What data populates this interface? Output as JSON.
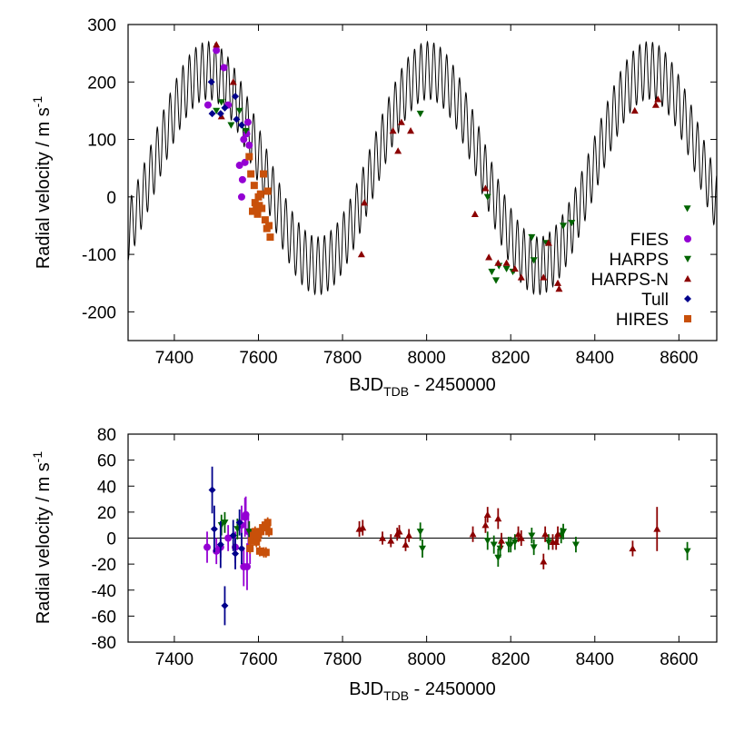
{
  "colors": {
    "FIES": "#9400d3",
    "HARPS": "#006400",
    "HARPS-N": "#8b0000",
    "Tull": "#00008b",
    "HIRES": "#c8500a",
    "model": "#000000"
  },
  "chart_data": [
    {
      "type": "line",
      "id": "top",
      "xlabel": {
        "main": "BJD",
        "sub": "TDB",
        "rest": " - 2450000"
      },
      "ylabel": {
        "main": "Radial velocity / m s",
        "sup": "-1"
      },
      "xlim": [
        7290,
        8690
      ],
      "ylim": [
        -250,
        300
      ],
      "xticks": [
        "7400",
        "7600",
        "7800",
        "8000",
        "8200",
        "8400",
        "8600"
      ],
      "yticks": [
        "-200",
        "-100",
        "0",
        "100",
        "200",
        "300"
      ],
      "legend_position": "right-lower",
      "legend": [
        "FIES",
        "HARPS",
        "HARPS-N",
        "Tull",
        "HIRES"
      ],
      "model": {
        "long_amplitude": 170,
        "long_period": 524,
        "long_peak": 7480,
        "offset": 50,
        "short_amplitude": 50,
        "short_period": 15.3
      },
      "series": [
        {
          "name": "FIES",
          "marker": "circle",
          "points": [
            [
              7480,
              160
            ],
            [
              7500,
              255
            ],
            [
              7518,
              225
            ],
            [
              7528,
              160
            ],
            [
              7555,
              55
            ],
            [
              7560,
              0
            ],
            [
              7562,
              30
            ],
            [
              7565,
              100
            ],
            [
              7568,
              60
            ],
            [
              7572,
              110
            ],
            [
              7575,
              130
            ],
            [
              7578,
              90
            ]
          ]
        },
        {
          "name": "HARPS",
          "marker": "triangle-down",
          "points": [
            [
              7500,
              150
            ],
            [
              7512,
              165
            ],
            [
              7535,
              125
            ],
            [
              7555,
              150
            ],
            [
              7570,
              115
            ],
            [
              7985,
              145
            ],
            [
              8145,
              0
            ],
            [
              8155,
              -130
            ],
            [
              8165,
              -145
            ],
            [
              8172,
              -120
            ],
            [
              8190,
              -125
            ],
            [
              8205,
              -130
            ],
            [
              8250,
              -70
            ],
            [
              8255,
              -110
            ],
            [
              8285,
              -80
            ],
            [
              8325,
              -50
            ],
            [
              8345,
              -45
            ],
            [
              8620,
              -20
            ]
          ]
        },
        {
          "name": "HARPS-N",
          "marker": "triangle-up",
          "points": [
            [
              7500,
              265
            ],
            [
              7512,
              140
            ],
            [
              7540,
              200
            ],
            [
              7845,
              -100
            ],
            [
              7852,
              -10
            ],
            [
              7920,
              115
            ],
            [
              7932,
              80
            ],
            [
              7940,
              130
            ],
            [
              7962,
              115
            ],
            [
              8115,
              -30
            ],
            [
              8140,
              15
            ],
            [
              8148,
              -105
            ],
            [
              8170,
              -115
            ],
            [
              8190,
              -115
            ],
            [
              8210,
              -125
            ],
            [
              8225,
              -140
            ],
            [
              8278,
              -140
            ],
            [
              8290,
              -80
            ],
            [
              8312,
              -150
            ],
            [
              8315,
              -160
            ],
            [
              8495,
              150
            ],
            [
              8545,
              160
            ],
            [
              8550,
              170
            ]
          ]
        },
        {
          "name": "Tull",
          "marker": "diamond",
          "points": [
            [
              7488,
              200
            ],
            [
              7490,
              145
            ],
            [
              7510,
              145
            ],
            [
              7520,
              155
            ],
            [
              7545,
              175
            ],
            [
              7548,
              135
            ],
            [
              7560,
              125
            ]
          ]
        },
        {
          "name": "HIRES",
          "marker": "square",
          "points": [
            [
              7578,
              70
            ],
            [
              7582,
              40
            ],
            [
              7586,
              -25
            ],
            [
              7590,
              20
            ],
            [
              7592,
              -10
            ],
            [
              7595,
              -20
            ],
            [
              7598,
              -30
            ],
            [
              7600,
              0
            ],
            [
              7602,
              -15
            ],
            [
              7605,
              5
            ],
            [
              7608,
              -20
            ],
            [
              7612,
              40
            ],
            [
              7616,
              -40
            ],
            [
              7620,
              -55
            ],
            [
              7622,
              10
            ],
            [
              7625,
              -50
            ],
            [
              7628,
              -70
            ]
          ]
        }
      ]
    },
    {
      "type": "scatter",
      "id": "bottom",
      "xlabel": {
        "main": "BJD",
        "sub": "TDB",
        "rest": " - 2450000"
      },
      "ylabel": {
        "main": "Radial velocity / m s",
        "sup": "-1"
      },
      "xlim": [
        7290,
        8690
      ],
      "ylim": [
        -80,
        80
      ],
      "xticks": [
        "7400",
        "7600",
        "7800",
        "8000",
        "8200",
        "8400",
        "8600"
      ],
      "yticks": [
        "-80",
        "-60",
        "-40",
        "-20",
        "0",
        "20",
        "40",
        "60",
        "80"
      ],
      "zero_line": 0,
      "series": [
        {
          "name": "FIES",
          "marker": "circle",
          "points": [
            [
              7478,
              -7,
              12
            ],
            [
              7500,
              -10,
              10
            ],
            [
              7510,
              -7,
              8
            ],
            [
              7528,
              0,
              10
            ],
            [
              7545,
              -7,
              12
            ],
            [
              7560,
              10,
              15
            ],
            [
              7565,
              -22,
              15
            ],
            [
              7568,
              16,
              15
            ],
            [
              7570,
              18,
              14
            ],
            [
              7573,
              -22,
              18
            ],
            [
              7576,
              5,
              12
            ],
            [
              7580,
              -8,
              12
            ]
          ]
        },
        {
          "name": "HARPS",
          "marker": "triangle-down",
          "points": [
            [
              7512,
              10,
              8
            ],
            [
              7520,
              12,
              8
            ],
            [
              7550,
              7,
              8
            ],
            [
              7578,
              5,
              8
            ],
            [
              7985,
              5,
              7
            ],
            [
              7990,
              -8,
              7
            ],
            [
              8145,
              -2,
              7
            ],
            [
              8160,
              -5,
              7
            ],
            [
              8170,
              -15,
              7
            ],
            [
              8175,
              -8,
              7
            ],
            [
              8195,
              -5,
              6
            ],
            [
              8200,
              -5,
              6
            ],
            [
              8210,
              -3,
              6
            ],
            [
              8250,
              2,
              6
            ],
            [
              8255,
              -7,
              6
            ],
            [
              8290,
              -3,
              6
            ],
            [
              8320,
              2,
              6
            ],
            [
              8325,
              5,
              6
            ],
            [
              8355,
              -5,
              6
            ],
            [
              8620,
              -10,
              7
            ]
          ]
        },
        {
          "name": "HARPS-N",
          "marker": "triangle-up",
          "points": [
            [
              7840,
              7,
              6
            ],
            [
              7848,
              8,
              6
            ],
            [
              7895,
              0,
              5
            ],
            [
              7915,
              -2,
              5
            ],
            [
              7930,
              3,
              5
            ],
            [
              7935,
              5,
              5
            ],
            [
              7950,
              -5,
              5
            ],
            [
              7958,
              2,
              5
            ],
            [
              8110,
              3,
              6
            ],
            [
              8140,
              10,
              6
            ],
            [
              8145,
              18,
              6
            ],
            [
              8170,
              15,
              8
            ],
            [
              8178,
              -2,
              6
            ],
            [
              8218,
              3,
              6
            ],
            [
              8225,
              0,
              6
            ],
            [
              8278,
              -18,
              6
            ],
            [
              8282,
              3,
              6
            ],
            [
              8300,
              -3,
              6
            ],
            [
              8308,
              -3,
              6
            ],
            [
              8312,
              3,
              6
            ],
            [
              8490,
              -8,
              6
            ],
            [
              8548,
              7,
              17
            ]
          ]
        },
        {
          "name": "Tull",
          "marker": "diamond",
          "points": [
            [
              7490,
              37,
              18
            ],
            [
              7495,
              7,
              18
            ],
            [
              7510,
              -5,
              18
            ],
            [
              7520,
              -52,
              15
            ],
            [
              7540,
              2,
              12
            ],
            [
              7545,
              -12,
              12
            ],
            [
              7555,
              12,
              10
            ],
            [
              7560,
              -8,
              12
            ]
          ]
        },
        {
          "name": "HIRES",
          "marker": "square",
          "points": [
            [
              7580,
              -8,
              4
            ],
            [
              7584,
              -2,
              4
            ],
            [
              7588,
              2,
              4
            ],
            [
              7592,
              5,
              4
            ],
            [
              7595,
              -3,
              4
            ],
            [
              7598,
              0,
              4
            ],
            [
              7600,
              3,
              4
            ],
            [
              7603,
              -10,
              4
            ],
            [
              7606,
              5,
              4
            ],
            [
              7610,
              8,
              4
            ],
            [
              7613,
              -11,
              4
            ],
            [
              7616,
              10,
              4
            ],
            [
              7618,
              -11,
              4
            ],
            [
              7620,
              10,
              4
            ],
            [
              7622,
              12,
              4
            ],
            [
              7625,
              5,
              4
            ]
          ]
        }
      ]
    }
  ]
}
